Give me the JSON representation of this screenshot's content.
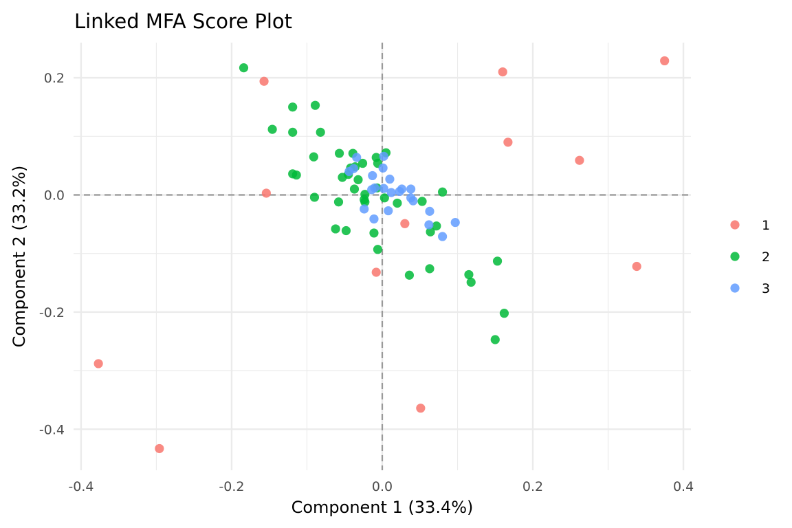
{
  "chart_data": {
    "type": "scatter",
    "title": "Linked MFA Score Plot",
    "xlabel": "Component 1 (33.4%)",
    "ylabel": "Component 2 (33.2%)",
    "xlim": [
      -0.41,
      0.41
    ],
    "ylim": [
      -0.47,
      0.26
    ],
    "x_ticks": [
      -0.4,
      -0.2,
      0.0,
      0.2,
      0.4
    ],
    "x_tick_labels": [
      "-0.4",
      "-0.2",
      "0.0",
      "0.2",
      "0.4"
    ],
    "y_ticks": [
      -0.4,
      -0.2,
      0.0,
      0.2
    ],
    "y_tick_labels": [
      "-0.4",
      "-0.2",
      "0.0",
      "0.2"
    ],
    "x_minor_ticks": [
      -0.3,
      -0.1,
      0.1,
      0.3
    ],
    "y_minor_ticks": [
      -0.3,
      -0.1,
      0.1
    ],
    "grid": true,
    "reference_lines": {
      "x": 0,
      "y": 0,
      "style": "dashed"
    },
    "legend_position": "right",
    "series": [
      {
        "name": "1",
        "color": "#F8766D",
        "points": [
          [
            -0.157,
            0.194
          ],
          [
            0.16,
            0.21
          ],
          [
            0.375,
            0.229
          ],
          [
            0.167,
            0.09
          ],
          [
            0.262,
            0.059
          ],
          [
            -0.154,
            0.003
          ],
          [
            0.03,
            -0.049
          ],
          [
            -0.008,
            -0.132
          ],
          [
            0.338,
            -0.122
          ],
          [
            -0.377,
            -0.288
          ],
          [
            0.051,
            -0.364
          ],
          [
            -0.296,
            -0.433
          ]
        ]
      },
      {
        "name": "2",
        "color": "#00BA38",
        "points": [
          [
            -0.184,
            0.217
          ],
          [
            -0.089,
            0.153
          ],
          [
            -0.119,
            0.15
          ],
          [
            -0.146,
            0.112
          ],
          [
            -0.119,
            0.107
          ],
          [
            -0.082,
            0.107
          ],
          [
            -0.057,
            0.071
          ],
          [
            -0.039,
            0.071
          ],
          [
            0.005,
            0.072
          ],
          [
            -0.091,
            0.065
          ],
          [
            -0.008,
            0.064
          ],
          [
            -0.026,
            0.054
          ],
          [
            -0.006,
            0.054
          ],
          [
            -0.036,
            0.048
          ],
          [
            -0.042,
            0.046
          ],
          [
            -0.045,
            0.035
          ],
          [
            -0.119,
            0.036
          ],
          [
            -0.114,
            0.034
          ],
          [
            -0.053,
            0.03
          ],
          [
            -0.032,
            0.026
          ],
          [
            -0.037,
            0.01
          ],
          [
            -0.007,
            0.012
          ],
          [
            0.08,
            0.005
          ],
          [
            -0.023,
            0.001
          ],
          [
            0.003,
            -0.005
          ],
          [
            -0.024,
            -0.008
          ],
          [
            -0.023,
            -0.012
          ],
          [
            -0.09,
            -0.004
          ],
          [
            -0.058,
            -0.012
          ],
          [
            0.053,
            -0.011
          ],
          [
            0.02,
            -0.014
          ],
          [
            0.072,
            -0.053
          ],
          [
            -0.062,
            -0.058
          ],
          [
            -0.048,
            -0.061
          ],
          [
            0.064,
            -0.063
          ],
          [
            -0.011,
            -0.065
          ],
          [
            -0.006,
            -0.093
          ],
          [
            0.153,
            -0.113
          ],
          [
            0.036,
            -0.137
          ],
          [
            0.115,
            -0.136
          ],
          [
            0.118,
            -0.149
          ],
          [
            0.063,
            -0.126
          ],
          [
            0.162,
            -0.202
          ],
          [
            0.15,
            -0.247
          ]
        ]
      },
      {
        "name": "3",
        "color": "#619CFF",
        "points": [
          [
            -0.034,
            0.064
          ],
          [
            0.002,
            0.066
          ],
          [
            0.001,
            0.046
          ],
          [
            -0.038,
            0.045
          ],
          [
            -0.044,
            0.04
          ],
          [
            -0.013,
            0.033
          ],
          [
            0.01,
            0.027
          ],
          [
            -0.01,
            0.012
          ],
          [
            0.002,
            0.011
          ],
          [
            -0.014,
            0.009
          ],
          [
            0.026,
            0.01
          ],
          [
            0.038,
            0.01
          ],
          [
            0.023,
            0.006
          ],
          [
            0.012,
            0.004
          ],
          [
            0.038,
            -0.005
          ],
          [
            0.041,
            -0.01
          ],
          [
            -0.024,
            -0.024
          ],
          [
            0.008,
            -0.027
          ],
          [
            0.063,
            -0.028
          ],
          [
            -0.011,
            -0.041
          ],
          [
            0.062,
            -0.051
          ],
          [
            0.097,
            -0.047
          ],
          [
            0.08,
            -0.071
          ]
        ]
      }
    ]
  }
}
